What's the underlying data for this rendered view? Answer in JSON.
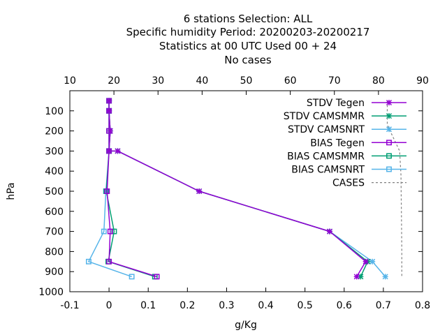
{
  "chart_data": {
    "type": "line",
    "title": [
      "6 stations Selection: ALL",
      "Specific humidity  Period: 20200203-20200217",
      "Statistics at 00 UTC  Used  00 + 24",
      "No cases"
    ],
    "xlabel": "g/Kg",
    "ylabel": "hPa",
    "xlim": [
      -0.1,
      0.8
    ],
    "ylim": [
      1000,
      0
    ],
    "x2lim": [
      10,
      90
    ],
    "xticks": [
      "-0.1",
      "0",
      "0.1",
      "0.2",
      "0.3",
      "0.4",
      "0.5",
      "0.6",
      "0.7",
      "0.8"
    ],
    "x2ticks": [
      "10",
      "20",
      "30",
      "40",
      "50",
      "60",
      "70",
      "80",
      "90"
    ],
    "yticks": [
      "100",
      "200",
      "300",
      "400",
      "500",
      "600",
      "700",
      "800",
      "900",
      "1000"
    ],
    "legend_position": "top-right",
    "grid": false,
    "series": [
      {
        "name": "STDV Tegen",
        "color": "#9400d3",
        "marker": "x",
        "points": [
          [
            0.0,
            50
          ],
          [
            0.0,
            100
          ],
          [
            0.003,
            200
          ],
          [
            0.0,
            300
          ],
          [
            0.022,
            300
          ],
          [
            0.23,
            500
          ],
          [
            0.563,
            700
          ],
          [
            0.655,
            850
          ],
          [
            0.632,
            925
          ]
        ]
      },
      {
        "name": "STDV CAMSMMR",
        "color": "#009e73",
        "marker": "x",
        "points": [
          [
            0.0,
            50
          ],
          [
            0.0,
            100
          ],
          [
            0.003,
            200
          ],
          [
            0.0,
            300
          ],
          [
            0.022,
            300
          ],
          [
            0.23,
            500
          ],
          [
            0.563,
            700
          ],
          [
            0.66,
            850
          ],
          [
            0.642,
            925
          ]
        ]
      },
      {
        "name": "STDV CAMSNRT",
        "color": "#56b4e9",
        "marker": "x",
        "points": [
          [
            0.0,
            50
          ],
          [
            0.0,
            100
          ],
          [
            0.003,
            200
          ],
          [
            0.0,
            300
          ],
          [
            0.022,
            300
          ],
          [
            0.23,
            500
          ],
          [
            0.563,
            700
          ],
          [
            0.672,
            850
          ],
          [
            0.705,
            925
          ]
        ]
      },
      {
        "name": "BIAS Tegen",
        "color": "#9400d3",
        "marker": "square",
        "points": [
          [
            0.0,
            50
          ],
          [
            0.0,
            100
          ],
          [
            0.0,
            200
          ],
          [
            0.0,
            300
          ],
          [
            -0.005,
            500
          ],
          [
            0.003,
            700
          ],
          [
            0.0,
            850
          ],
          [
            0.122,
            925
          ]
        ]
      },
      {
        "name": "BIAS CAMSMMR",
        "color": "#009e73",
        "marker": "square",
        "points": [
          [
            0.0,
            50
          ],
          [
            0.0,
            100
          ],
          [
            0.0,
            200
          ],
          [
            0.0,
            300
          ],
          [
            -0.007,
            500
          ],
          [
            0.013,
            700
          ],
          [
            -0.002,
            850
          ],
          [
            0.117,
            925
          ]
        ]
      },
      {
        "name": "BIAS CAMSNRT",
        "color": "#56b4e9",
        "marker": "square",
        "points": [
          [
            0.0,
            50
          ],
          [
            0.0,
            100
          ],
          [
            0.0,
            200
          ],
          [
            0.0,
            300
          ],
          [
            -0.008,
            500
          ],
          [
            -0.013,
            700
          ],
          [
            -0.052,
            850
          ],
          [
            0.058,
            925
          ]
        ]
      },
      {
        "name": "CASES",
        "color": "#808080",
        "marker": "none",
        "dash": true,
        "axis": "x2",
        "points": [
          [
            82,
            50
          ],
          [
            82,
            100
          ],
          [
            82,
            150
          ],
          [
            82,
            170
          ],
          [
            83.5,
            240
          ],
          [
            84.8,
            300
          ],
          [
            85.1,
            420
          ],
          [
            85.2,
            600
          ],
          [
            85.3,
            800
          ],
          [
            85.3,
            925
          ]
        ]
      }
    ]
  }
}
